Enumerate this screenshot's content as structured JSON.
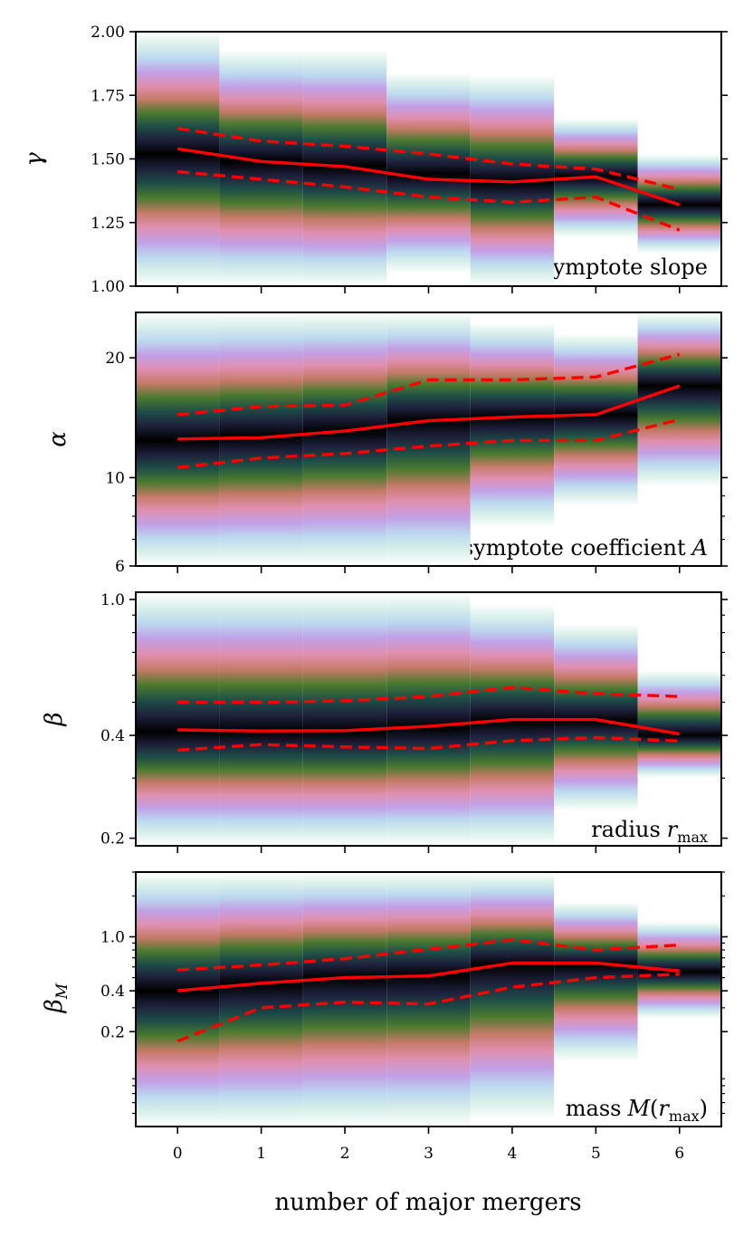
{
  "chart_data": {
    "type": "line",
    "xlabel": "number of major mergers",
    "x": [
      0,
      1,
      2,
      3,
      4,
      5,
      6
    ],
    "xlim": [
      -0.5,
      6.5
    ],
    "panels": [
      {
        "id": "gamma",
        "ylabel": "γ",
        "label_text": "asymptote slope",
        "scale": "linear",
        "ylim": [
          1.0,
          2.0
        ],
        "yticks": [
          {
            "value": 1.0,
            "label": "1.00"
          },
          {
            "value": 1.25,
            "label": "1.25"
          },
          {
            "value": 1.5,
            "label": "1.50"
          },
          {
            "value": 1.75,
            "label": "1.75"
          },
          {
            "value": 2.0,
            "label": "2.00"
          }
        ],
        "minor_yticks": [],
        "median": [
          1.54,
          1.49,
          1.47,
          1.42,
          1.41,
          1.43,
          1.32
        ],
        "q_upper": [
          1.62,
          1.57,
          1.55,
          1.52,
          1.48,
          1.46,
          1.38
        ],
        "q_lower": [
          1.45,
          1.42,
          1.39,
          1.35,
          1.33,
          1.35,
          1.22
        ],
        "dist_range": [
          [
            1.0,
            2.0
          ],
          [
            1.0,
            1.93
          ],
          [
            1.0,
            1.93
          ],
          [
            1.05,
            1.84
          ],
          [
            0.99,
            1.83
          ],
          [
            1.19,
            1.66
          ],
          [
            1.13,
            1.52
          ]
        ],
        "dist_center": [
          1.52,
          1.49,
          1.47,
          1.44,
          1.41,
          1.43,
          1.32
        ]
      },
      {
        "id": "alpha",
        "ylabel": "α",
        "label_text": "asymptote coefficient",
        "label_symbol": "A",
        "scale": "log",
        "ylim": [
          6,
          26
        ],
        "yticks": [
          {
            "value": 6,
            "label": "6"
          },
          {
            "value": 10,
            "label": "10"
          },
          {
            "value": 20,
            "label": "20"
          }
        ],
        "minor_yticks": [
          7,
          8,
          9
        ],
        "median": [
          12.5,
          12.6,
          13.1,
          13.9,
          14.2,
          14.4,
          17.0
        ],
        "q_upper": [
          14.4,
          15.1,
          15.2,
          17.6,
          17.6,
          17.9,
          20.4
        ],
        "q_lower": [
          10.6,
          11.2,
          11.5,
          12.0,
          12.4,
          12.4,
          14.0
        ],
        "dist_range": [
          [
            6,
            26
          ],
          [
            6,
            26
          ],
          [
            6,
            26
          ],
          [
            6,
            26
          ],
          [
            7.5,
            24.5
          ],
          [
            8.5,
            23
          ],
          [
            9.5,
            26
          ]
        ],
        "dist_center": [
          12.4,
          12.7,
          13.1,
          13.9,
          14.2,
          14.4,
          17.0
        ]
      },
      {
        "id": "beta",
        "ylabel": "β",
        "label_text": "radius",
        "label_symbol": "r",
        "label_sub": "max",
        "scale": "log",
        "ylim": [
          0.19,
          1.05
        ],
        "yticks": [
          {
            "value": 0.2,
            "label": "0.2"
          },
          {
            "value": 0.4,
            "label": "0.4"
          },
          {
            "value": 1.0,
            "label": "1.0"
          }
        ],
        "minor_yticks": [
          0.3,
          0.5,
          0.6,
          0.7,
          0.8,
          0.9
        ],
        "median": [
          0.415,
          0.412,
          0.413,
          0.425,
          0.445,
          0.445,
          0.404
        ],
        "q_upper": [
          0.5,
          0.5,
          0.505,
          0.52,
          0.552,
          0.53,
          0.52
        ],
        "q_lower": [
          0.362,
          0.376,
          0.37,
          0.366,
          0.386,
          0.394,
          0.385
        ],
        "dist_range": [
          [
            0.19,
            1.05
          ],
          [
            0.19,
            1.05
          ],
          [
            0.19,
            1.05
          ],
          [
            0.19,
            1.05
          ],
          [
            0.19,
            0.97
          ],
          [
            0.24,
            0.85
          ],
          [
            0.3,
            0.62
          ]
        ],
        "dist_center": [
          0.41,
          0.41,
          0.41,
          0.42,
          0.44,
          0.44,
          0.4
        ]
      },
      {
        "id": "betaM",
        "ylabel": "β",
        "ylabel_sub": "M",
        "label_text": "mass",
        "label_symbol": "M",
        "label_sub": "max",
        "scale": "log",
        "ylim": [
          0.04,
          3.0
        ],
        "yticks": [
          {
            "value": 0.2,
            "label": "0.2"
          },
          {
            "value": 0.4,
            "label": "0.4"
          },
          {
            "value": 1.0,
            "label": "1.0"
          }
        ],
        "minor_yticks": [
          0.05,
          0.06,
          0.07,
          0.08,
          0.09,
          0.3,
          0.5,
          0.6,
          0.7,
          0.8,
          0.9,
          2.0,
          3.0
        ],
        "median": [
          0.4,
          0.455,
          0.5,
          0.515,
          0.64,
          0.64,
          0.56
        ],
        "q_upper": [
          0.57,
          0.62,
          0.69,
          0.81,
          0.95,
          0.8,
          0.87
        ],
        "q_lower": [
          0.17,
          0.3,
          0.33,
          0.32,
          0.425,
          0.5,
          0.53
        ],
        "dist_range": [
          [
            0.04,
            3.0
          ],
          [
            0.04,
            3.0
          ],
          [
            0.04,
            3.0
          ],
          [
            0.04,
            3.0
          ],
          [
            0.045,
            3.0
          ],
          [
            0.12,
            1.8
          ],
          [
            0.25,
            1.3
          ]
        ],
        "dist_center": [
          0.4,
          0.45,
          0.5,
          0.52,
          0.62,
          0.62,
          0.55
        ]
      }
    ]
  },
  "colors": {
    "line": "#ff0000",
    "cmap": [
      "#000000",
      "#1d1f3a",
      "#1e4d47",
      "#4a7a2f",
      "#c47a66",
      "#e08fb0",
      "#c2a0e6",
      "#bcd8ef",
      "#d9f0ea",
      "#ffffff"
    ]
  }
}
